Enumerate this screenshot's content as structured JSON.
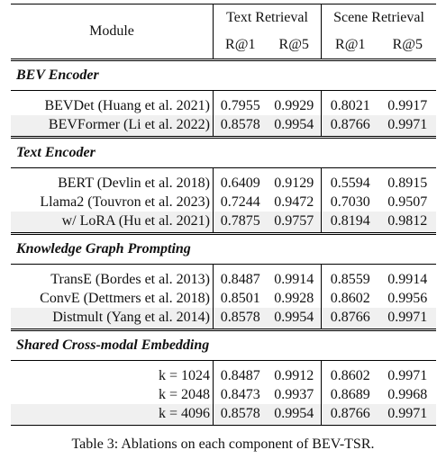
{
  "table": {
    "header": {
      "module": "Module",
      "groups": [
        "Text Retrieval",
        "Scene Retrieval"
      ],
      "metrics": [
        "R@1",
        "R@5",
        "R@1",
        "R@5"
      ]
    },
    "sections": [
      {
        "title": "BEV Encoder",
        "rows": [
          [
            "BEVDet (Huang et al. 2021)",
            "0.7955",
            "0.9929",
            "0.8021",
            "0.9917"
          ],
          [
            "BEVFormer (Li et al. 2022)",
            "0.8578",
            "0.9954",
            "0.8766",
            "0.9971"
          ]
        ]
      },
      {
        "title": "Text Encoder",
        "rows": [
          [
            "BERT (Devlin et al. 2018)",
            "0.6409",
            "0.9129",
            "0.5594",
            "0.8915"
          ],
          [
            "Llama2 (Touvron et al. 2023)",
            "0.7244",
            "0.9472",
            "0.7030",
            "0.9507"
          ],
          [
            "w/ LoRA (Hu et al. 2021)",
            "0.7875",
            "0.9757",
            "0.8194",
            "0.9812"
          ]
        ]
      },
      {
        "title": "Knowledge Graph Prompting",
        "rows": [
          [
            "TransE (Bordes et al. 2013)",
            "0.8487",
            "0.9914",
            "0.8559",
            "0.9914"
          ],
          [
            "ConvE (Dettmers et al. 2018)",
            "0.8501",
            "0.9928",
            "0.8602",
            "0.9956"
          ],
          [
            "Distmult (Yang et al. 2014)",
            "0.8578",
            "0.9954",
            "0.8766",
            "0.9971"
          ]
        ]
      },
      {
        "title": "Shared Cross-modal Embedding",
        "rows": [
          [
            "k = 1024",
            "0.8487",
            "0.9912",
            "0.8602",
            "0.9971"
          ],
          [
            "k = 2048",
            "0.8473",
            "0.9937",
            "0.8689",
            "0.9968"
          ],
          [
            "k = 4096",
            "0.8578",
            "0.9954",
            "0.8766",
            "0.9971"
          ]
        ]
      }
    ]
  },
  "caption": "Table 3: Ablations on each component of BEV-TSR."
}
